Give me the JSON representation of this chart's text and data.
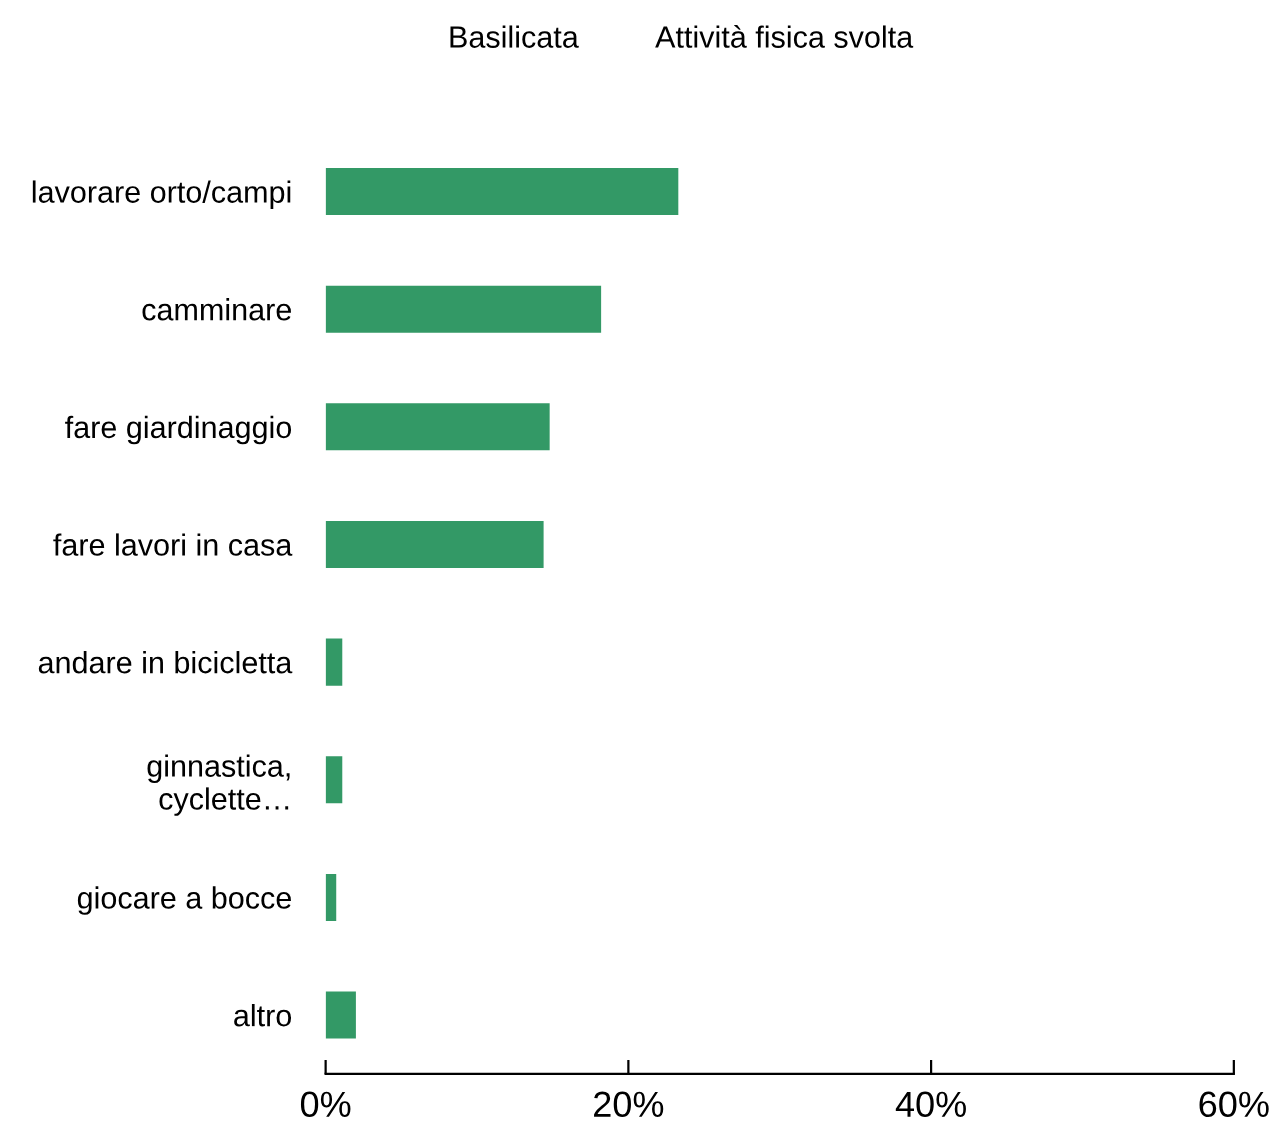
{
  "chart_data": {
    "type": "bar",
    "orientation": "horizontal",
    "title": "Basilicata",
    "subtitle": "Attività fisica svolta",
    "categories": [
      "lavorare orto/campi",
      "camminare",
      "fare giardinaggio",
      "fare lavori in casa",
      "andare in bicicletta",
      "ginnastica,\ncyclette…",
      "giocare a bocce",
      "altro"
    ],
    "values": [
      23.3,
      18.2,
      14.8,
      14.4,
      1.1,
      1.1,
      0.7,
      2.0
    ],
    "color": "#339966",
    "xlim": [
      0,
      60
    ],
    "xticks": [
      {
        "value": 0,
        "label": "0%"
      },
      {
        "value": 20,
        "label": "20%"
      },
      {
        "value": 40,
        "label": "40%"
      },
      {
        "value": 60,
        "label": "60%"
      }
    ],
    "grid": false,
    "legend": false
  }
}
